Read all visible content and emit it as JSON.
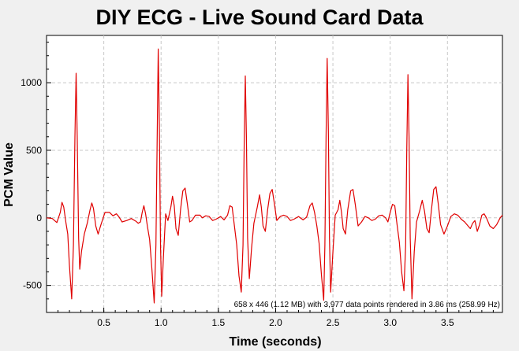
{
  "chart_data": {
    "type": "line",
    "title": "DIY ECG - Live Sound Card Data",
    "xlabel": "Time (seconds)",
    "ylabel": "PCM Value",
    "xlim": [
      0,
      3.98
    ],
    "ylim": [
      -700,
      1350
    ],
    "x_ticks": [
      "0.5",
      "1.0",
      "1.5",
      "2.0",
      "2.5",
      "3.0",
      "3.5"
    ],
    "y_ticks": [
      "-500",
      "0",
      "500",
      "1000"
    ],
    "grid": true,
    "legend": "none",
    "line_color": "#e00000",
    "info_text": "658 x 446 (1.12 MB) with 3,977 data points rendered in 3.86 ms (258.99 Hz)",
    "series": [
      {
        "points": [
          [
            0.0,
            0
          ],
          [
            0.05,
            -5
          ],
          [
            0.09,
            -35
          ],
          [
            0.12,
            40
          ],
          [
            0.135,
            115
          ],
          [
            0.15,
            80
          ],
          [
            0.17,
            -40
          ],
          [
            0.185,
            -120
          ],
          [
            0.2,
            -350
          ],
          [
            0.22,
            -600
          ],
          [
            0.235,
            -200
          ],
          [
            0.248,
            600
          ],
          [
            0.258,
            1070
          ],
          [
            0.268,
            600
          ],
          [
            0.28,
            -150
          ],
          [
            0.29,
            -380
          ],
          [
            0.305,
            -250
          ],
          [
            0.33,
            -120
          ],
          [
            0.355,
            -40
          ],
          [
            0.38,
            60
          ],
          [
            0.395,
            110
          ],
          [
            0.41,
            70
          ],
          [
            0.43,
            -60
          ],
          [
            0.45,
            -120
          ],
          [
            0.475,
            -50
          ],
          [
            0.51,
            40
          ],
          [
            0.55,
            40
          ],
          [
            0.58,
            15
          ],
          [
            0.61,
            30
          ],
          [
            0.63,
            10
          ],
          [
            0.66,
            -30
          ],
          [
            0.7,
            -20
          ],
          [
            0.74,
            -5
          ],
          [
            0.78,
            -25
          ],
          [
            0.8,
            -40
          ],
          [
            0.82,
            -30
          ],
          [
            0.835,
            40
          ],
          [
            0.85,
            90
          ],
          [
            0.865,
            30
          ],
          [
            0.88,
            -60
          ],
          [
            0.9,
            -160
          ],
          [
            0.92,
            -380
          ],
          [
            0.94,
            -630
          ],
          [
            0.955,
            -200
          ],
          [
            0.965,
            500
          ],
          [
            0.975,
            1250
          ],
          [
            0.985,
            700
          ],
          [
            0.995,
            -200
          ],
          [
            1.005,
            -580
          ],
          [
            1.02,
            -300
          ],
          [
            1.04,
            30
          ],
          [
            1.06,
            -20
          ],
          [
            1.085,
            80
          ],
          [
            1.1,
            160
          ],
          [
            1.115,
            90
          ],
          [
            1.13,
            -80
          ],
          [
            1.15,
            -130
          ],
          [
            1.17,
            60
          ],
          [
            1.19,
            200
          ],
          [
            1.21,
            220
          ],
          [
            1.23,
            100
          ],
          [
            1.25,
            -30
          ],
          [
            1.27,
            -20
          ],
          [
            1.3,
            20
          ],
          [
            1.34,
            20
          ],
          [
            1.36,
            0
          ],
          [
            1.39,
            15
          ],
          [
            1.42,
            10
          ],
          [
            1.45,
            -20
          ],
          [
            1.48,
            -10
          ],
          [
            1.52,
            10
          ],
          [
            1.55,
            -15
          ],
          [
            1.58,
            20
          ],
          [
            1.6,
            90
          ],
          [
            1.62,
            80
          ],
          [
            1.64,
            -60
          ],
          [
            1.66,
            -200
          ],
          [
            1.68,
            -430
          ],
          [
            1.7,
            -550
          ],
          [
            1.715,
            -200
          ],
          [
            1.725,
            500
          ],
          [
            1.735,
            1050
          ],
          [
            1.745,
            600
          ],
          [
            1.755,
            -150
          ],
          [
            1.77,
            -450
          ],
          [
            1.79,
            -220
          ],
          [
            1.81,
            -40
          ],
          [
            1.84,
            80
          ],
          [
            1.86,
            170
          ],
          [
            1.875,
            80
          ],
          [
            1.89,
            -60
          ],
          [
            1.91,
            -100
          ],
          [
            1.93,
            60
          ],
          [
            1.95,
            180
          ],
          [
            1.97,
            210
          ],
          [
            1.99,
            100
          ],
          [
            2.01,
            -20
          ],
          [
            2.04,
            10
          ],
          [
            2.07,
            20
          ],
          [
            2.1,
            10
          ],
          [
            2.13,
            -20
          ],
          [
            2.16,
            -10
          ],
          [
            2.2,
            10
          ],
          [
            2.24,
            -15
          ],
          [
            2.27,
            5
          ],
          [
            2.3,
            90
          ],
          [
            2.32,
            110
          ],
          [
            2.34,
            40
          ],
          [
            2.36,
            -60
          ],
          [
            2.38,
            -190
          ],
          [
            2.4,
            -420
          ],
          [
            2.42,
            -610
          ],
          [
            2.43,
            -200
          ],
          [
            2.44,
            600
          ],
          [
            2.45,
            1180
          ],
          [
            2.46,
            650
          ],
          [
            2.47,
            -150
          ],
          [
            2.48,
            -550
          ],
          [
            2.5,
            -250
          ],
          [
            2.52,
            20
          ],
          [
            2.545,
            60
          ],
          [
            2.56,
            130
          ],
          [
            2.575,
            40
          ],
          [
            2.59,
            -80
          ],
          [
            2.61,
            -120
          ],
          [
            2.63,
            60
          ],
          [
            2.655,
            200
          ],
          [
            2.675,
            210
          ],
          [
            2.695,
            100
          ],
          [
            2.72,
            -60
          ],
          [
            2.75,
            -30
          ],
          [
            2.78,
            10
          ],
          [
            2.81,
            0
          ],
          [
            2.84,
            -20
          ],
          [
            2.87,
            -10
          ],
          [
            2.9,
            15
          ],
          [
            2.93,
            20
          ],
          [
            2.96,
            0
          ],
          [
            2.98,
            -30
          ],
          [
            3.0,
            40
          ],
          [
            3.02,
            100
          ],
          [
            3.04,
            90
          ],
          [
            3.06,
            -50
          ],
          [
            3.08,
            -180
          ],
          [
            3.1,
            -400
          ],
          [
            3.12,
            -540
          ],
          [
            3.135,
            -200
          ],
          [
            3.145,
            500
          ],
          [
            3.155,
            1060
          ],
          [
            3.165,
            600
          ],
          [
            3.175,
            -150
          ],
          [
            3.19,
            -600
          ],
          [
            3.21,
            -250
          ],
          [
            3.23,
            -30
          ],
          [
            3.26,
            60
          ],
          [
            3.28,
            130
          ],
          [
            3.3,
            50
          ],
          [
            3.32,
            -80
          ],
          [
            3.34,
            -110
          ],
          [
            3.36,
            60
          ],
          [
            3.38,
            210
          ],
          [
            3.4,
            230
          ],
          [
            3.42,
            100
          ],
          [
            3.44,
            -50
          ],
          [
            3.47,
            -120
          ],
          [
            3.5,
            -60
          ],
          [
            3.53,
            10
          ],
          [
            3.56,
            30
          ],
          [
            3.59,
            20
          ],
          [
            3.62,
            -10
          ],
          [
            3.65,
            -30
          ],
          [
            3.68,
            -60
          ],
          [
            3.7,
            -80
          ],
          [
            3.72,
            -40
          ],
          [
            3.74,
            -20
          ],
          [
            3.76,
            -100
          ],
          [
            3.78,
            -50
          ],
          [
            3.8,
            20
          ],
          [
            3.82,
            30
          ],
          [
            3.84,
            0
          ],
          [
            3.87,
            -60
          ],
          [
            3.9,
            -80
          ],
          [
            3.93,
            -50
          ],
          [
            3.96,
            0
          ],
          [
            3.98,
            20
          ]
        ]
      }
    ]
  }
}
